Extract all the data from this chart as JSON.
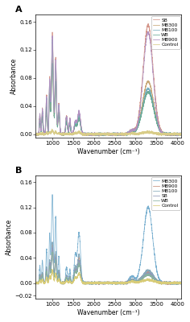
{
  "panel_A": {
    "title": "A",
    "legend": [
      "SB",
      "MB300",
      "MB100",
      "WB",
      "MB900",
      "Control"
    ],
    "colors": [
      "#d4968a",
      "#c8a878",
      "#7ab0c0",
      "#6aaa96",
      "#b090c0",
      "#d8cc88"
    ],
    "ylim": [
      -0.005,
      0.17
    ],
    "yticks": [
      0.0,
      0.04,
      0.08,
      0.12,
      0.16
    ],
    "variants": {
      "SB": {
        "p1000": 0.145,
        "p1640": 0.03,
        "p2900": 0.005,
        "p3300": 0.155,
        "p3300w": 120
      },
      "MB300": {
        "p1000": 0.105,
        "p1640": 0.025,
        "p2900": 0.004,
        "p3300": 0.075,
        "p3300w": 130
      },
      "MB100": {
        "p1000": 0.135,
        "p1640": 0.028,
        "p2900": 0.004,
        "p3300": 0.065,
        "p3300w": 130
      },
      "WB": {
        "p1000": 0.1,
        "p1640": 0.022,
        "p2900": 0.003,
        "p3300": 0.06,
        "p3300w": 130
      },
      "MB900": {
        "p1000": 0.14,
        "p1640": 0.032,
        "p2900": 0.005,
        "p3300": 0.145,
        "p3300w": 115
      },
      "Control": {
        "p1000": 0.005,
        "p1640": 0.003,
        "p2900": 0.001,
        "p3300": 0.003,
        "p3300w": 130
      }
    }
  },
  "panel_B": {
    "title": "B",
    "legend": [
      "MB300",
      "MB900",
      "MB100",
      "SB",
      "WB",
      "Control"
    ],
    "colors": [
      "#7ab0d0",
      "#c8907a",
      "#88aabb",
      "#9098b8",
      "#88b0a0",
      "#d8cc78"
    ],
    "ylim": [
      -0.025,
      0.17
    ],
    "yticks": [
      -0.02,
      0.0,
      0.04,
      0.08,
      0.12,
      0.16
    ],
    "variants": {
      "MB300": {
        "p1000": 0.14,
        "p1640": 0.08,
        "p2900": 0.01,
        "p3300": 0.12,
        "p3300w": 110
      },
      "MB900": {
        "p1000": 0.06,
        "p1640": 0.04,
        "p2900": 0.005,
        "p3300": 0.018,
        "p3300w": 120
      },
      "MB100": {
        "p1000": 0.065,
        "p1640": 0.045,
        "p2900": 0.005,
        "p3300": 0.02,
        "p3300w": 120
      },
      "SB": {
        "p1000": 0.055,
        "p1640": 0.035,
        "p2900": 0.004,
        "p3300": 0.015,
        "p3300w": 120
      },
      "WB": {
        "p1000": 0.048,
        "p1640": 0.03,
        "p2900": 0.003,
        "p3300": 0.013,
        "p3300w": 120
      },
      "Control": {
        "p1000": 0.02,
        "p1640": 0.015,
        "p2900": 0.002,
        "p3300": 0.005,
        "p3300w": 130
      }
    }
  },
  "xlabel": "Wavenumber (cm⁻¹)",
  "ylabel": "Absorbance",
  "xlim": [
    600,
    4100
  ],
  "xticks": [
    1000,
    1500,
    2000,
    2500,
    3000,
    3500,
    4000
  ]
}
